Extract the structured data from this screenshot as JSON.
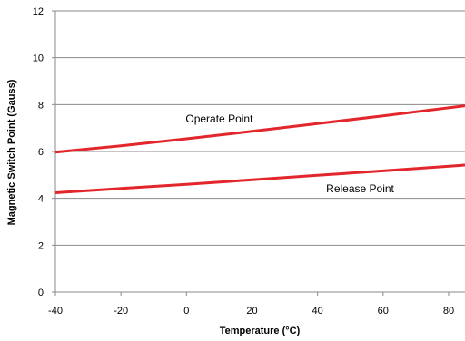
{
  "chart_data": {
    "type": "line",
    "title": "",
    "xlabel": "Temperature (°C)",
    "ylabel": "Magnetic Switch Point (Gauss)",
    "xlim": [
      -40,
      85
    ],
    "ylim": [
      0,
      12
    ],
    "x_ticks": [
      -40,
      -20,
      0,
      20,
      40,
      60,
      80
    ],
    "y_ticks": [
      0,
      2,
      4,
      6,
      8,
      10,
      12
    ],
    "grid": "horizontal",
    "series": [
      {
        "name": "Operate Point",
        "color": "#e3262b",
        "x": [
          -40,
          -20,
          0,
          20,
          40,
          60,
          85
        ],
        "y": [
          5.97,
          6.24,
          6.54,
          6.86,
          7.19,
          7.52,
          7.95
        ]
      },
      {
        "name": "Release Point",
        "color": "#e3262b",
        "x": [
          -40,
          -20,
          0,
          20,
          40,
          60,
          85
        ],
        "y": [
          4.24,
          4.42,
          4.6,
          4.79,
          4.98,
          5.17,
          5.42
        ]
      }
    ]
  }
}
